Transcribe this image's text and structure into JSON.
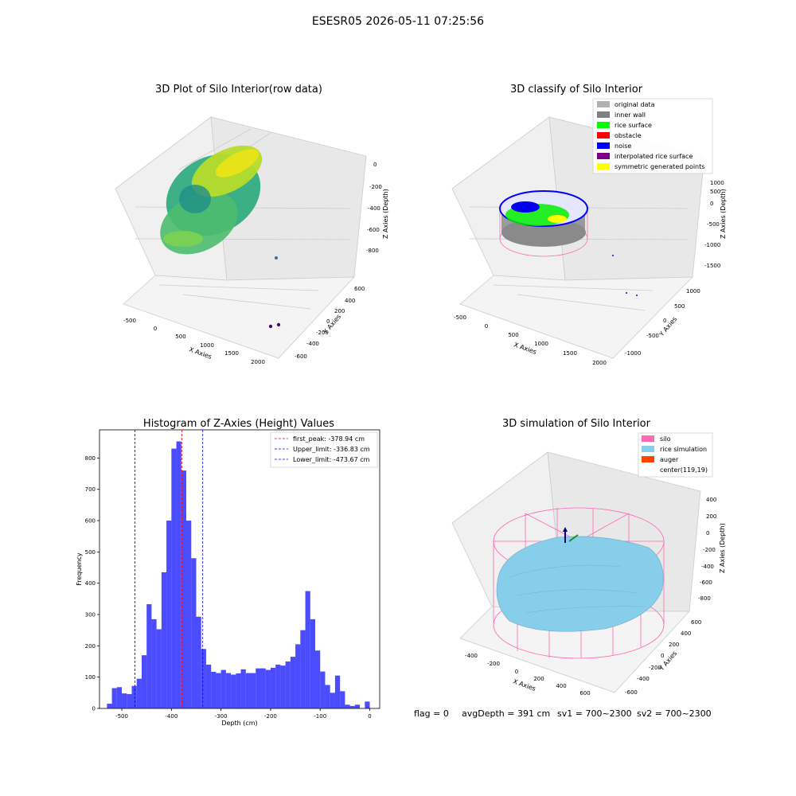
{
  "suptitle": "ESESR05 2026-05-11 07:25:56",
  "panels": {
    "raw": {
      "title": "3D Plot of Silo Interior(row data)",
      "xlabel": "X Axies",
      "ylabel": "Y Axies",
      "zlabel": "Z Axies (Depth)",
      "xticks": [
        "-500",
        "0",
        "500",
        "1000",
        "1500",
        "2000"
      ],
      "yticks": [
        "600",
        "400",
        "200",
        "0",
        "-200",
        "-400",
        "-600"
      ],
      "zticks": [
        "0",
        "-200",
        "-400",
        "-600",
        "-800"
      ]
    },
    "classify": {
      "title": "3D classify of Silo Interior",
      "xlabel": "X Axies",
      "ylabel": "Y Axies",
      "zlabel": "Z Axies (Depth)",
      "xticks": [
        "-500",
        "0",
        "500",
        "1000",
        "1500",
        "2000"
      ],
      "yticks": [
        "1000",
        "500",
        "0",
        "-500",
        "-1000"
      ],
      "zticks": [
        "1000",
        "500",
        "0",
        "-500",
        "-1000",
        "-1500"
      ],
      "legend": [
        {
          "label": "original data",
          "color": "#b0b0b0"
        },
        {
          "label": "inner wall",
          "color": "#808080"
        },
        {
          "label": "rice surface",
          "color": "#00ff00"
        },
        {
          "label": "obstacle",
          "color": "#ff0000"
        },
        {
          "label": "noise",
          "color": "#0000ff"
        },
        {
          "label": "interpolated rice surface",
          "color": "#800080"
        },
        {
          "label": "symmetric generated points",
          "color": "#ffff00"
        }
      ]
    },
    "simulation": {
      "title": "3D simulation of Silo Interior",
      "xlabel": "X Axies",
      "ylabel": "Y Axies",
      "zlabel": "Z Axies (Depth)",
      "xticks": [
        "-400",
        "-200",
        "0",
        "200",
        "400",
        "600"
      ],
      "yticks": [
        "600",
        "400",
        "200",
        "0",
        "-200",
        "-400",
        "-600"
      ],
      "zticks": [
        "400",
        "200",
        "0",
        "-200",
        "-400",
        "-600",
        "-800"
      ],
      "legend": [
        {
          "label": "silo",
          "color": "#ff69b4"
        },
        {
          "label": "rice simulation",
          "color": "#87ceeb"
        },
        {
          "label": "auger",
          "color": "#ff4500"
        },
        {
          "label": "center(119,19)",
          "color": ""
        }
      ]
    }
  },
  "status": {
    "flag": "flag = 0",
    "avg_depth": "avgDepth = 391 cm",
    "sv1": "sv1 = 700~2300",
    "sv2": "sv2 = 700~2300"
  },
  "chart_data": {
    "type": "bar",
    "title": "Histogram of Z-Axies (Height) Values",
    "xlabel": "Depth (cm)",
    "ylabel": "Frequency",
    "xlim": [
      -545,
      20
    ],
    "ylim": [
      0,
      890
    ],
    "xticks": [
      -500,
      -400,
      -300,
      -200,
      -100,
      0
    ],
    "yticks": [
      0,
      100,
      200,
      300,
      400,
      500,
      600,
      700,
      800
    ],
    "bar_color": "#0000ff",
    "bin_width": 10,
    "bins": [
      {
        "x": -525,
        "y": 15
      },
      {
        "x": -515,
        "y": 65
      },
      {
        "x": -505,
        "y": 68
      },
      {
        "x": -495,
        "y": 48
      },
      {
        "x": -485,
        "y": 46
      },
      {
        "x": -475,
        "y": 72
      },
      {
        "x": -465,
        "y": 95
      },
      {
        "x": -455,
        "y": 170
      },
      {
        "x": -445,
        "y": 333
      },
      {
        "x": -435,
        "y": 285
      },
      {
        "x": -425,
        "y": 253
      },
      {
        "x": -415,
        "y": 435
      },
      {
        "x": -405,
        "y": 600
      },
      {
        "x": -395,
        "y": 830
      },
      {
        "x": -385,
        "y": 853
      },
      {
        "x": -375,
        "y": 760
      },
      {
        "x": -365,
        "y": 600
      },
      {
        "x": -355,
        "y": 480
      },
      {
        "x": -345,
        "y": 293
      },
      {
        "x": -335,
        "y": 190
      },
      {
        "x": -325,
        "y": 140
      },
      {
        "x": -315,
        "y": 117
      },
      {
        "x": -305,
        "y": 113
      },
      {
        "x": -295,
        "y": 123
      },
      {
        "x": -285,
        "y": 113
      },
      {
        "x": -275,
        "y": 108
      },
      {
        "x": -265,
        "y": 112
      },
      {
        "x": -255,
        "y": 125
      },
      {
        "x": -245,
        "y": 113
      },
      {
        "x": -235,
        "y": 113
      },
      {
        "x": -225,
        "y": 128
      },
      {
        "x": -215,
        "y": 128
      },
      {
        "x": -205,
        "y": 123
      },
      {
        "x": -195,
        "y": 130
      },
      {
        "x": -185,
        "y": 140
      },
      {
        "x": -175,
        "y": 137
      },
      {
        "x": -165,
        "y": 150
      },
      {
        "x": -155,
        "y": 165
      },
      {
        "x": -145,
        "y": 205
      },
      {
        "x": -135,
        "y": 250
      },
      {
        "x": -125,
        "y": 375
      },
      {
        "x": -115,
        "y": 285
      },
      {
        "x": -105,
        "y": 185
      },
      {
        "x": -95,
        "y": 118
      },
      {
        "x": -85,
        "y": 75
      },
      {
        "x": -75,
        "y": 50
      },
      {
        "x": -65,
        "y": 105
      },
      {
        "x": -55,
        "y": 55
      },
      {
        "x": -45,
        "y": 12
      },
      {
        "x": -35,
        "y": 8
      },
      {
        "x": -25,
        "y": 12
      },
      {
        "x": -5,
        "y": 22
      }
    ],
    "vlines": [
      {
        "label": "first_peak: -378.94 cm",
        "x": -378.94,
        "color": "#ff0000"
      },
      {
        "label": "Upper_limit: -336.83 cm",
        "x": -336.83,
        "color": "#0000ff"
      },
      {
        "label": "Lower_limit: -473.67 cm",
        "x": -473.67,
        "color": "#0000ff"
      }
    ],
    "legend_position": "top-right"
  }
}
